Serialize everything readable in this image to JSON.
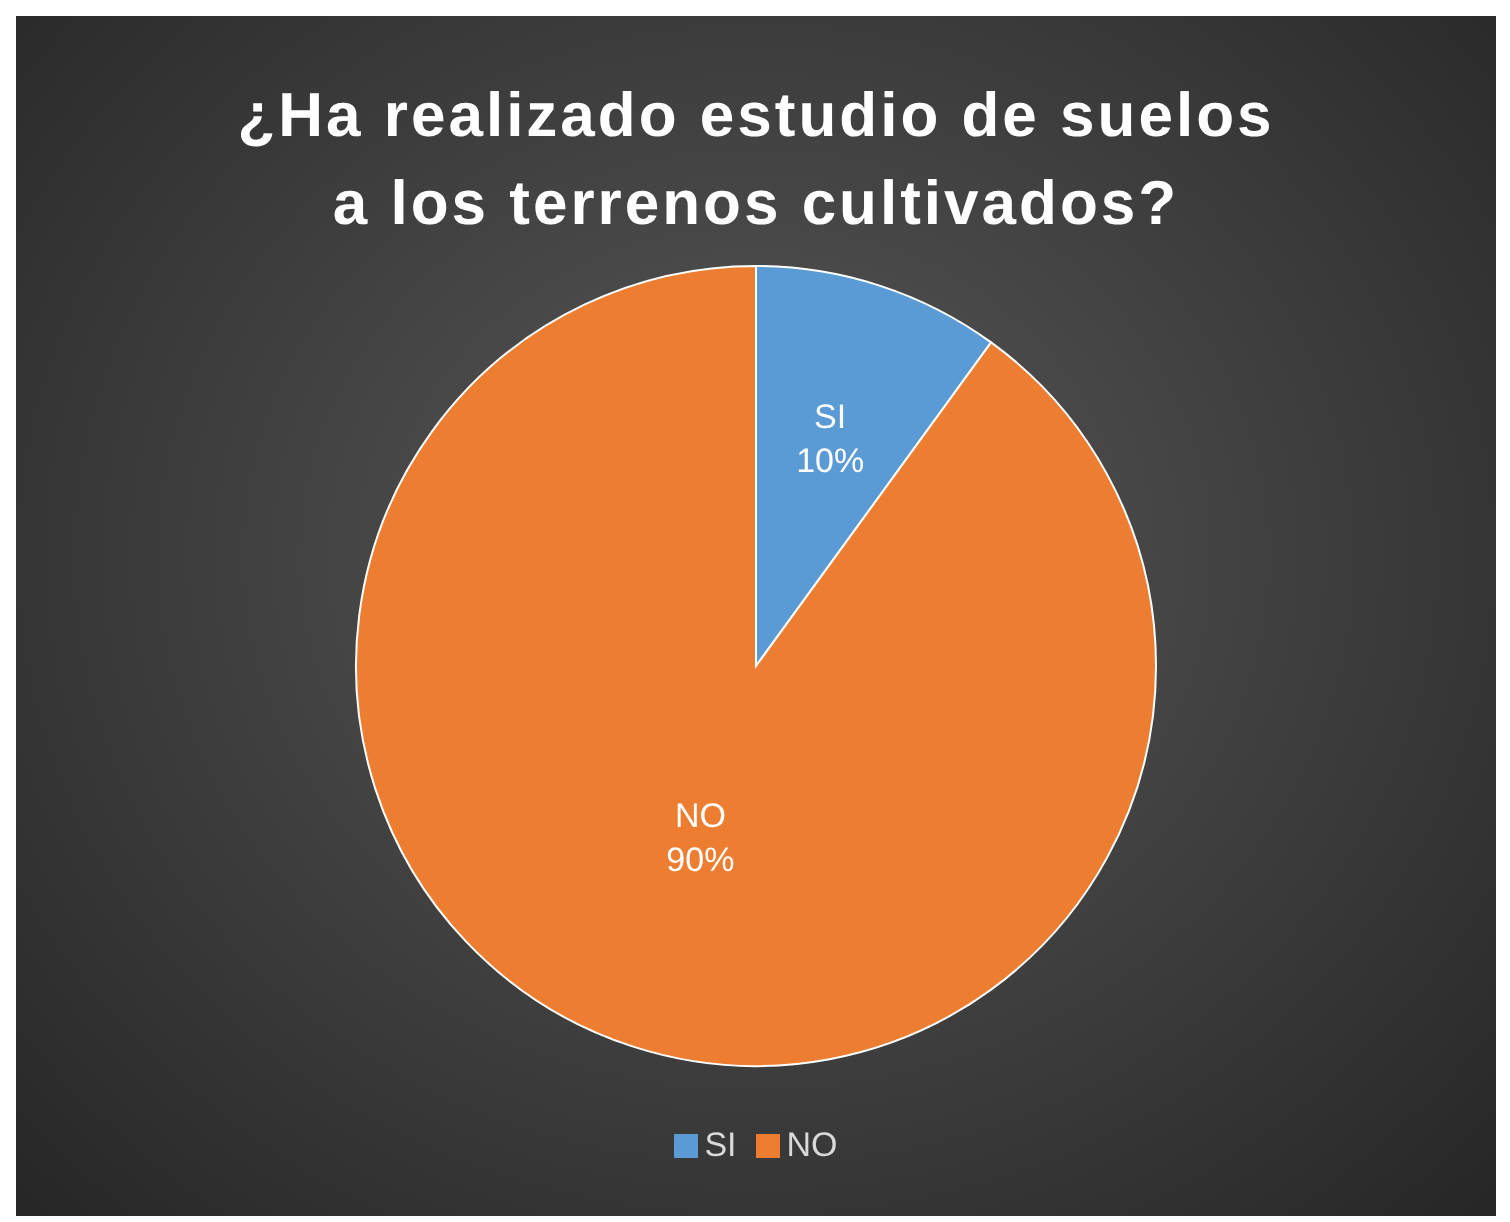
{
  "chart_data": {
    "type": "pie",
    "title": "¿Ha realizado estudio de suelos\na los terrenos cultivados?",
    "categories": [
      "SI",
      "NO"
    ],
    "values": [
      10,
      90
    ],
    "colors": [
      "#5b9bd5",
      "#ed7d31"
    ],
    "value_labels": [
      "10%",
      "90%"
    ],
    "legend": "bottom"
  }
}
